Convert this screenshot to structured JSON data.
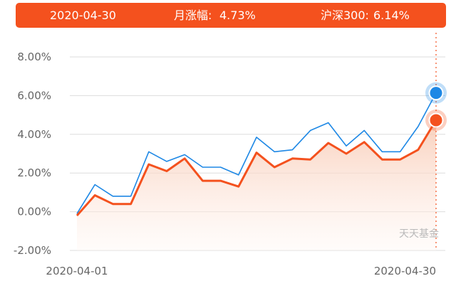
{
  "tooltip": {
    "date": "2020-04-30",
    "fund_label": "月涨幅:",
    "fund_value": "4.73%",
    "index_label": "沪深300:",
    "index_value": "6.14%"
  },
  "watermark": "天天基金",
  "colors": {
    "fund": "#f4511e",
    "index": "#1e88e5",
    "tooltip_bg": "#f4511e",
    "grid": "#dddddd",
    "cursor": "#f4511e",
    "area_top": "#f8c7b0",
    "area_bottom": "#fff7f3"
  },
  "chart_data": {
    "type": "line",
    "x": [
      "2020-04-01",
      "2020-04-02",
      "2020-04-03",
      "2020-04-07",
      "2020-04-08",
      "2020-04-09",
      "2020-04-10",
      "2020-04-13",
      "2020-04-14",
      "2020-04-15",
      "2020-04-16",
      "2020-04-17",
      "2020-04-20",
      "2020-04-21",
      "2020-04-22",
      "2020-04-23",
      "2020-04-24",
      "2020-04-27",
      "2020-04-28",
      "2020-04-29",
      "2020-04-30"
    ],
    "xticks": [
      "2020-04-01",
      "2020-04-30"
    ],
    "yticks": [
      8,
      6,
      4,
      2,
      0,
      -2
    ],
    "ytick_labels": [
      "8.00%",
      "6.00%",
      "4.00%",
      "2.00%",
      "0.00%",
      "-2.00%"
    ],
    "ylim": [
      -2,
      8
    ],
    "series": [
      {
        "name": "沪深300",
        "color": "#1e88e5",
        "points": [
          [
            "2020-04-01",
            -0.1
          ],
          [
            "2020-04-02",
            1.4
          ],
          [
            "2020-04-03",
            0.8
          ],
          [
            "2020-04-07",
            0.8
          ],
          [
            "2020-04-08",
            3.1
          ],
          [
            "2020-04-09",
            2.6
          ],
          [
            "2020-04-10",
            2.95
          ],
          [
            "2020-04-13",
            2.3
          ],
          [
            "2020-04-14",
            2.3
          ],
          [
            "2020-04-15",
            1.9
          ],
          [
            "2020-04-16",
            3.85
          ],
          [
            "2020-04-17",
            3.1
          ],
          [
            "2020-04-20",
            3.2
          ],
          [
            "2020-04-21",
            4.2
          ],
          [
            "2020-04-22",
            4.6
          ],
          [
            "2020-04-23",
            3.4
          ],
          [
            "2020-04-24",
            4.2
          ],
          [
            "2020-04-27",
            3.1
          ],
          [
            "2020-04-28",
            3.1
          ],
          [
            "2020-04-29",
            4.4
          ],
          [
            "2020-04-30",
            6.14
          ]
        ]
      },
      {
        "name": "月涨幅",
        "color": "#f4511e",
        "points": [
          [
            "2020-04-01",
            -0.2
          ],
          [
            "2020-04-02",
            0.85
          ],
          [
            "2020-04-03",
            0.4
          ],
          [
            "2020-04-07",
            0.4
          ],
          [
            "2020-04-08",
            2.45
          ],
          [
            "2020-04-09",
            2.1
          ],
          [
            "2020-04-10",
            2.75
          ],
          [
            "2020-04-13",
            1.6
          ],
          [
            "2020-04-14",
            1.6
          ],
          [
            "2020-04-15",
            1.3
          ],
          [
            "2020-04-16",
            3.05
          ],
          [
            "2020-04-17",
            2.3
          ],
          [
            "2020-04-20",
            2.75
          ],
          [
            "2020-04-21",
            2.7
          ],
          [
            "2020-04-22",
            3.55
          ],
          [
            "2020-04-23",
            3.0
          ],
          [
            "2020-04-24",
            3.6
          ],
          [
            "2020-04-27",
            2.7
          ],
          [
            "2020-04-28",
            2.7
          ],
          [
            "2020-04-29",
            3.2
          ],
          [
            "2020-04-30",
            4.73
          ]
        ]
      }
    ],
    "highlighted_date": "2020-04-30"
  }
}
